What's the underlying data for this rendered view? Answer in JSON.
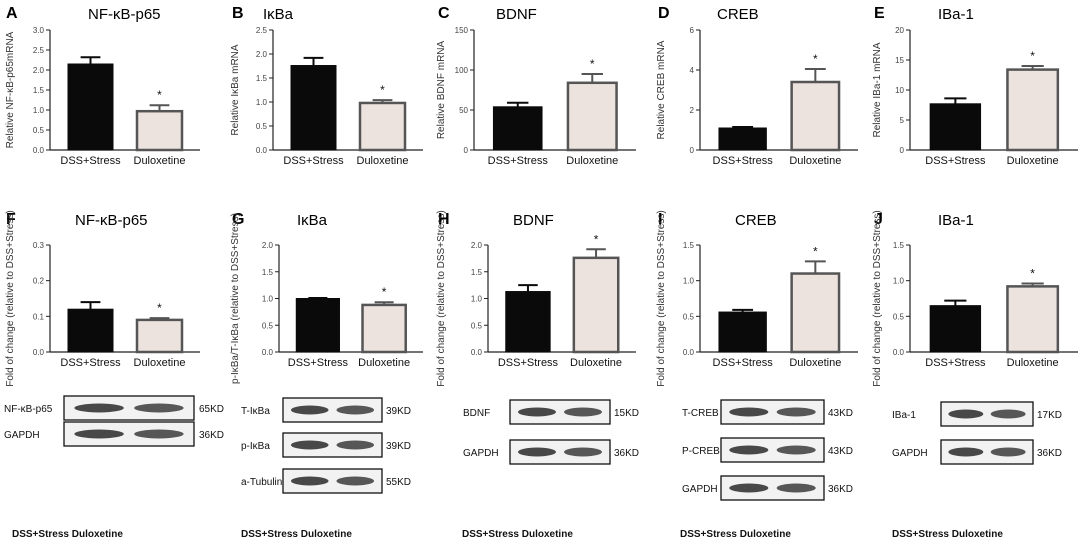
{
  "chart_data": [
    {
      "panel": "A",
      "type": "bar",
      "title": "NF-κB-p65",
      "ylabel": "Relative NF-κB-p65mRNA",
      "categories": [
        "DSS+Stress",
        "Duloxetine"
      ],
      "values": [
        2.15,
        0.97
      ],
      "errors": [
        0.17,
        0.15
      ],
      "ylim": [
        0,
        3.0
      ],
      "yticks": [
        "0.0",
        "0.5",
        "1.0",
        "1.5",
        "2.0",
        "2.5",
        "3.0"
      ],
      "significance": [
        false,
        true
      ],
      "sig_marker": "*"
    },
    {
      "panel": "B",
      "type": "bar",
      "title": "IκBa",
      "ylabel": "Relative IκBa mRNA",
      "categories": [
        "DSS+Stress",
        "Duloxetine"
      ],
      "values": [
        1.76,
        0.98
      ],
      "errors": [
        0.16,
        0.06
      ],
      "ylim": [
        0,
        2.5
      ],
      "yticks": [
        "0.0",
        "0.5",
        "1.0",
        "1.5",
        "2.0",
        "2.5"
      ],
      "significance": [
        false,
        true
      ],
      "sig_marker": "*"
    },
    {
      "panel": "C",
      "type": "bar",
      "title": "BDNF",
      "ylabel": "Relative BDNF mRNA",
      "categories": [
        "DSS+Stress",
        "Duloxetine"
      ],
      "values": [
        54,
        84
      ],
      "errors": [
        5,
        11
      ],
      "ylim": [
        0,
        150
      ],
      "yticks": [
        "0",
        "50",
        "100",
        "150"
      ],
      "significance": [
        false,
        true
      ],
      "sig_marker": "*"
    },
    {
      "panel": "D",
      "type": "bar",
      "title": "CREB",
      "ylabel": "Relative CREB mRNA",
      "categories": [
        "DSS+Stress",
        "Duloxetine"
      ],
      "values": [
        1.1,
        3.4
      ],
      "errors": [
        0.05,
        0.65
      ],
      "ylim": [
        0,
        6
      ],
      "yticks": [
        "0",
        "2",
        "4",
        "6"
      ],
      "significance": [
        false,
        true
      ],
      "sig_marker": "*"
    },
    {
      "panel": "E",
      "type": "bar",
      "title": "IBa-1",
      "ylabel": "Relative IBa-1 mRNA",
      "categories": [
        "DSS+Stress",
        "Duloxetine"
      ],
      "values": [
        7.7,
        13.4
      ],
      "errors": [
        0.9,
        0.6
      ],
      "ylim": [
        0,
        20
      ],
      "yticks": [
        "0",
        "5",
        "10",
        "15",
        "20"
      ],
      "significance": [
        false,
        true
      ],
      "sig_marker": "*"
    },
    {
      "panel": "F",
      "type": "bar",
      "title": "NF-κB-p65",
      "ylabel": "Fold of change (relative to DSS+Stress)",
      "categories": [
        "DSS+Stress",
        "Duloxetine"
      ],
      "values": [
        0.12,
        0.09
      ],
      "errors": [
        0.02,
        0.005
      ],
      "ylim": [
        0,
        0.3
      ],
      "yticks": [
        "0.0",
        "0.1",
        "0.2",
        "0.3"
      ],
      "significance": [
        false,
        true
      ],
      "sig_marker": "*"
    },
    {
      "panel": "G",
      "type": "bar",
      "title": "IκBa",
      "ylabel": "p-IκBa/T-IκBa (relative to DSS+Stress)",
      "categories": [
        "DSS+Stress",
        "Duloxetine"
      ],
      "values": [
        1.0,
        0.88
      ],
      "errors": [
        0.01,
        0.05
      ],
      "ylim": [
        0,
        2.0
      ],
      "yticks": [
        "0.0",
        "0.5",
        "1.0",
        "1.5",
        "2.0"
      ],
      "significance": [
        false,
        true
      ],
      "sig_marker": "*"
    },
    {
      "panel": "H",
      "type": "bar",
      "title": "BDNF",
      "ylabel": "Fold of change (relative to DSS+Stress)",
      "categories": [
        "DSS+Stress",
        "Duloxetine"
      ],
      "values": [
        1.13,
        1.76
      ],
      "errors": [
        0.12,
        0.16
      ],
      "ylim": [
        0,
        2.0
      ],
      "yticks": [
        "0.0",
        "0.5",
        "1.0",
        "1.5",
        "2.0"
      ],
      "significance": [
        false,
        true
      ],
      "sig_marker": "*"
    },
    {
      "panel": "I",
      "type": "bar",
      "title": "CREB",
      "ylabel": "Fold of change (relative to DSS+Stress)",
      "categories": [
        "DSS+Stress",
        "Duloxetine"
      ],
      "values": [
        0.56,
        1.1
      ],
      "errors": [
        0.03,
        0.17
      ],
      "ylim": [
        0,
        1.5
      ],
      "yticks": [
        "0.0",
        "0.5",
        "1.0",
        "1.5"
      ],
      "significance": [
        false,
        true
      ],
      "sig_marker": "*"
    },
    {
      "panel": "J",
      "type": "bar",
      "title": "IBa-1",
      "ylabel": "Fold of change (relative to DSS+Stress)",
      "categories": [
        "DSS+Stress",
        "Duloxetine"
      ],
      "values": [
        0.65,
        0.92
      ],
      "errors": [
        0.07,
        0.04
      ],
      "ylim": [
        0,
        1.5
      ],
      "yticks": [
        "0.0",
        "0.5",
        "1.0",
        "1.5"
      ],
      "significance": [
        false,
        true
      ],
      "sig_marker": "*"
    }
  ],
  "blots": [
    {
      "panel": "F",
      "rows": [
        {
          "label": "NF-κB-p65",
          "kd": "65KD"
        },
        {
          "label": "GAPDH",
          "kd": "36KD"
        }
      ],
      "footer": "DSS+Stress Duloxetine"
    },
    {
      "panel": "G",
      "rows": [
        {
          "label": "T-IκBa",
          "kd": "39KD"
        },
        {
          "label": "p-IκBa",
          "kd": "39KD"
        },
        {
          "label": "a-Tubulin",
          "kd": "55KD"
        }
      ],
      "footer": "DSS+Stress Duloxetine"
    },
    {
      "panel": "H",
      "rows": [
        {
          "label": "BDNF",
          "kd": "15KD"
        },
        {
          "label": "GAPDH",
          "kd": "36KD"
        }
      ],
      "footer": "DSS+Stress Duloxetine"
    },
    {
      "panel": "I",
      "rows": [
        {
          "label": "T-CREB",
          "kd": "43KD"
        },
        {
          "label": "P-CREB",
          "kd": "43KD"
        },
        {
          "label": "GAPDH",
          "kd": "36KD"
        }
      ],
      "footer": "DSS+Stress  Duloxetine"
    },
    {
      "panel": "J",
      "rows": [
        {
          "label": "IBa-1",
          "kd": "17KD"
        },
        {
          "label": "GAPDH",
          "kd": "36KD"
        }
      ],
      "footer": "DSS+Stress  Duloxetine"
    }
  ],
  "colors": {
    "bar1": "#0a0a0a",
    "bar2_fill": "#ece3df",
    "bar2_stroke": "#555555"
  }
}
